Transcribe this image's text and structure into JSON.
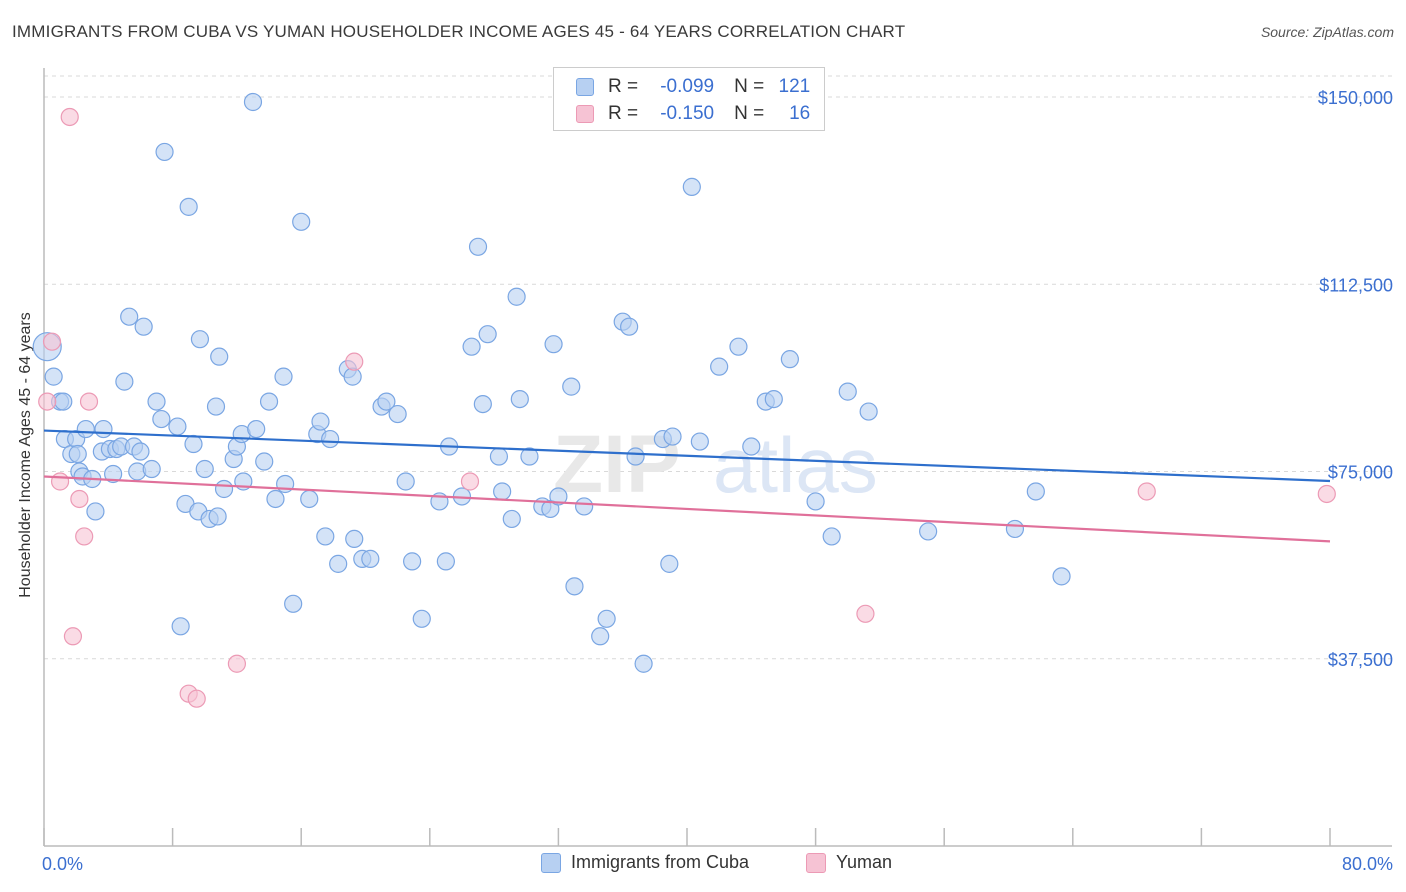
{
  "header": {
    "title": "IMMIGRANTS FROM CUBA VS YUMAN HOUSEHOLDER INCOME AGES 45 - 64 YEARS CORRELATION CHART",
    "source": "Source: ZipAtlas.com"
  },
  "watermark": {
    "text_a": "ZIP",
    "text_b": "atlas"
  },
  "legend_top": {
    "rows": [
      {
        "r_label": "R =",
        "r_value": "-0.099",
        "n_label": "N =",
        "n_value": "121"
      },
      {
        "r_label": "R =",
        "r_value": "-0.150",
        "n_label": "N =",
        "n_value": "16"
      }
    ]
  },
  "legend_bottom": {
    "items": [
      {
        "label": "Immigrants from Cuba"
      },
      {
        "label": "Yuman"
      }
    ]
  },
  "colors": {
    "blue_fill": "#b7d0f2",
    "blue_stroke": "#7aa6e3",
    "blue_line": "#2e6fcc",
    "pink_fill": "#f6c3d4",
    "pink_stroke": "#ec9ab5",
    "pink_line": "#e0709a",
    "tick_text": "#3b6fd0",
    "grid": "#d9d9d9"
  },
  "chart_data": {
    "type": "scatter",
    "ylabel": "Householder Income Ages 45 - 64 years",
    "xlim": [
      0,
      80
    ],
    "ylim": [
      0,
      155000
    ],
    "x_tick_labels": [
      {
        "value": 0,
        "label": "0.0%"
      },
      {
        "value": 80,
        "label": "80.0%"
      }
    ],
    "y_ticks": [
      {
        "value": 37500,
        "label": "$37,500"
      },
      {
        "value": 75000,
        "label": "$75,000"
      },
      {
        "value": 112500,
        "label": "$112,500"
      },
      {
        "value": 150000,
        "label": "$150,000"
      }
    ],
    "grid": "horizontal dashed",
    "series": [
      {
        "name": "Immigrants from Cuba",
        "trend": {
          "x": [
            0,
            80
          ],
          "y": [
            83200,
            73100
          ]
        },
        "points": [
          [
            0.2,
            100000
          ],
          [
            0.6,
            94000
          ],
          [
            1.0,
            89000
          ],
          [
            1.2,
            89000
          ],
          [
            1.3,
            81500
          ],
          [
            1.7,
            78500
          ],
          [
            2.0,
            81500
          ],
          [
            2.1,
            78500
          ],
          [
            2.2,
            75000
          ],
          [
            2.4,
            74000
          ],
          [
            2.6,
            83500
          ],
          [
            3.0,
            73500
          ],
          [
            3.2,
            67000
          ],
          [
            3.6,
            79000
          ],
          [
            3.7,
            83500
          ],
          [
            4.1,
            79500
          ],
          [
            4.3,
            74500
          ],
          [
            4.5,
            79500
          ],
          [
            4.8,
            80000
          ],
          [
            5.0,
            93000
          ],
          [
            5.3,
            106000
          ],
          [
            5.6,
            80000
          ],
          [
            5.8,
            75000
          ],
          [
            6.0,
            79000
          ],
          [
            6.2,
            104000
          ],
          [
            6.7,
            75500
          ],
          [
            7.0,
            89000
          ],
          [
            7.3,
            85500
          ],
          [
            7.5,
            139000
          ],
          [
            8.3,
            84000
          ],
          [
            8.5,
            44000
          ],
          [
            8.8,
            68500
          ],
          [
            9.0,
            128000
          ],
          [
            9.3,
            80500
          ],
          [
            9.6,
            67000
          ],
          [
            9.7,
            101500
          ],
          [
            10.0,
            75500
          ],
          [
            10.3,
            65500
          ],
          [
            10.7,
            88000
          ],
          [
            10.8,
            66000
          ],
          [
            10.9,
            98000
          ],
          [
            11.2,
            71500
          ],
          [
            11.8,
            77500
          ],
          [
            12.0,
            80000
          ],
          [
            12.3,
            82500
          ],
          [
            12.4,
            73000
          ],
          [
            13.0,
            149000
          ],
          [
            13.2,
            83500
          ],
          [
            13.7,
            77000
          ],
          [
            14.0,
            89000
          ],
          [
            14.4,
            69500
          ],
          [
            14.9,
            94000
          ],
          [
            15.0,
            72500
          ],
          [
            15.5,
            48500
          ],
          [
            16.0,
            125000
          ],
          [
            16.5,
            69500
          ],
          [
            17.0,
            82500
          ],
          [
            17.2,
            85000
          ],
          [
            17.5,
            62000
          ],
          [
            17.8,
            81500
          ],
          [
            18.3,
            56500
          ],
          [
            18.9,
            95500
          ],
          [
            19.2,
            94000
          ],
          [
            19.3,
            61500
          ],
          [
            19.8,
            57500
          ],
          [
            20.3,
            57500
          ],
          [
            21.0,
            88000
          ],
          [
            21.3,
            89000
          ],
          [
            22.0,
            86500
          ],
          [
            22.5,
            73000
          ],
          [
            22.9,
            57000
          ],
          [
            23.5,
            45500
          ],
          [
            24.6,
            69000
          ],
          [
            25.0,
            57000
          ],
          [
            25.2,
            80000
          ],
          [
            26.0,
            70000
          ],
          [
            26.6,
            100000
          ],
          [
            27.0,
            120000
          ],
          [
            27.3,
            88500
          ],
          [
            27.6,
            102500
          ],
          [
            28.3,
            78000
          ],
          [
            28.5,
            71000
          ],
          [
            29.1,
            65500
          ],
          [
            29.4,
            110000
          ],
          [
            29.6,
            89500
          ],
          [
            30.2,
            78000
          ],
          [
            31.0,
            68000
          ],
          [
            31.5,
            67500
          ],
          [
            31.7,
            100500
          ],
          [
            32.0,
            70000
          ],
          [
            32.8,
            92000
          ],
          [
            33.0,
            52000
          ],
          [
            33.6,
            68000
          ],
          [
            34.6,
            42000
          ],
          [
            35.0,
            45500
          ],
          [
            36.0,
            105000
          ],
          [
            36.4,
            104000
          ],
          [
            36.8,
            78000
          ],
          [
            37.3,
            36500
          ],
          [
            38.5,
            81500
          ],
          [
            38.9,
            56500
          ],
          [
            39.1,
            82000
          ],
          [
            40.3,
            132000
          ],
          [
            40.8,
            81000
          ],
          [
            42.0,
            96000
          ],
          [
            43.2,
            100000
          ],
          [
            44.0,
            80000
          ],
          [
            44.9,
            89000
          ],
          [
            45.4,
            89500
          ],
          [
            46.4,
            97500
          ],
          [
            48.0,
            69000
          ],
          [
            49.0,
            62000
          ],
          [
            50.0,
            91000
          ],
          [
            51.3,
            87000
          ],
          [
            55.0,
            63000
          ],
          [
            60.4,
            63500
          ],
          [
            61.7,
            71000
          ],
          [
            63.3,
            54000
          ]
        ]
      },
      {
        "name": "Yuman",
        "trend": {
          "x": [
            0,
            80
          ],
          "y": [
            74000,
            61000
          ]
        },
        "points": [
          [
            0.2,
            89000
          ],
          [
            0.5,
            101000
          ],
          [
            1.0,
            73000
          ],
          [
            1.6,
            146000
          ],
          [
            1.8,
            42000
          ],
          [
            2.2,
            69500
          ],
          [
            2.5,
            62000
          ],
          [
            2.8,
            89000
          ],
          [
            9.0,
            30500
          ],
          [
            9.5,
            29500
          ],
          [
            12.0,
            36500
          ],
          [
            19.3,
            97000
          ],
          [
            26.5,
            73000
          ],
          [
            51.1,
            46500
          ],
          [
            68.6,
            71000
          ],
          [
            79.8,
            70500
          ]
        ]
      }
    ]
  }
}
